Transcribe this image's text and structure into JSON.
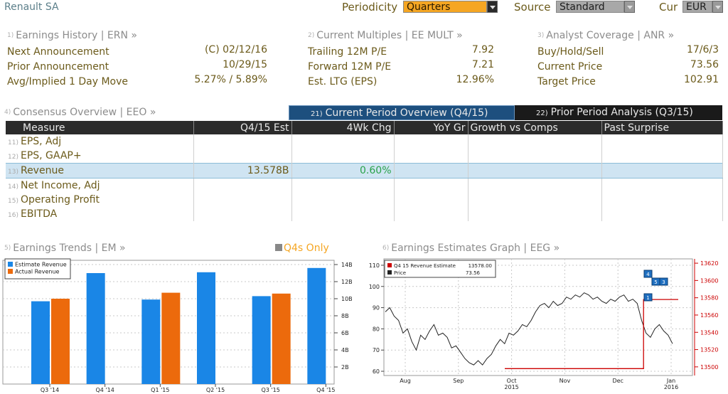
{
  "header": {
    "title": "Renault SA",
    "periodicity_label": "Periodicity",
    "periodicity_value": "Quarters",
    "source_label": "Source",
    "source_value": "Standard",
    "cur_label": "Cur",
    "cur_value": "EUR"
  },
  "sections": {
    "earnings_history": {
      "num": "1)",
      "title": "Earnings History | ERN »",
      "rows": [
        {
          "label": "Next Announcement",
          "value": "(C)  02/12/16"
        },
        {
          "label": "Prior Announcement",
          "value": "10/29/15"
        },
        {
          "label": "Avg/Implied 1 Day Move",
          "value": "5.27% / 5.89%"
        }
      ]
    },
    "current_multiples": {
      "num": "2)",
      "title": "Current Multiples | EE MULT »",
      "rows": [
        {
          "label": "Trailing 12M P/E",
          "value": "7.92"
        },
        {
          "label": "Forward 12M P/E",
          "value": "7.21"
        },
        {
          "label": "Est. LTG (EPS)",
          "value": "12.96%"
        }
      ]
    },
    "analyst_coverage": {
      "num": "3)",
      "title": "Analyst Coverage | ANR »",
      "rows": [
        {
          "label": "Buy/Hold/Sell",
          "value": "17/6/3"
        },
        {
          "label": "Current Price",
          "value": "73.56"
        },
        {
          "label": "Target Price",
          "value": "102.91"
        }
      ]
    }
  },
  "consensus": {
    "num": "4)",
    "title": "Consensus Overview | EEO »",
    "tab_current_num": "21)",
    "tab_current": "Current Period Overview (Q4/15)",
    "tab_prior_num": "22)",
    "tab_prior": "Prior Period Analysis (Q3/15)",
    "columns": [
      "Measure",
      "Q4/15 Est",
      "4Wk Chg",
      "YoY Gr",
      "Growth vs Comps",
      "Past Surprise"
    ],
    "rows": [
      {
        "num": "11)",
        "measure": "EPS, Adj",
        "est": "",
        "chg": ""
      },
      {
        "num": "12)",
        "measure": "EPS, GAAP+",
        "est": "",
        "chg": ""
      },
      {
        "num": "13)",
        "measure": "Revenue",
        "est": "13.578B",
        "chg": "0.60%"
      },
      {
        "num": "14)",
        "measure": "Net Income, Adj",
        "est": "",
        "chg": ""
      },
      {
        "num": "15)",
        "measure": "Operating Profit",
        "est": "",
        "chg": ""
      },
      {
        "num": "16)",
        "measure": "EBITDA",
        "est": "",
        "chg": ""
      }
    ]
  },
  "trends": {
    "num": "5)",
    "title": "Earnings Trends | EM »",
    "q4s_label": "Q4s Only"
  },
  "estgraph": {
    "num": "6)",
    "title": "Earnings Estimates Graph | EEG »"
  },
  "colors": {
    "estimate": "#1a86e6",
    "actual": "#ec6a0c",
    "price": "#222222",
    "revenue_est": "#cc0000",
    "tab_active": "#1d4f7e"
  },
  "chart_data": [
    {
      "type": "bar",
      "title": "",
      "categories": [
        "Q3 '14",
        "Q4 '14",
        "Q1 '15",
        "Q2 '15",
        "Q3 '15",
        "Q4 '15"
      ],
      "series": [
        {
          "name": "Estimate Revenue",
          "values": [
            9.7,
            13.0,
            9.9,
            13.1,
            10.3,
            13.6
          ]
        },
        {
          "name": "Actual Revenue",
          "values": [
            10.0,
            null,
            10.7,
            null,
            10.6,
            null
          ]
        }
      ],
      "y_ticks": [
        "2B",
        "4B",
        "6B",
        "8B",
        "10B",
        "12B",
        "14B"
      ],
      "ylim": [
        0,
        14.5
      ],
      "y_axis_side": "right",
      "legend": "top-left",
      "grid": true
    },
    {
      "type": "line",
      "title": "",
      "x_ticks": [
        "Aug",
        "Sep",
        "Oct\n2015",
        "Nov",
        "Dec",
        "Jan\n2016"
      ],
      "series": [
        {
          "name": "Price",
          "axis": "left",
          "last_value": "73.56",
          "values": [
            88,
            90,
            86,
            84,
            78,
            80,
            74,
            70,
            77,
            75,
            79,
            82,
            77,
            78,
            76,
            71,
            72,
            69,
            66,
            64,
            63,
            65,
            63,
            66,
            68,
            72,
            75,
            73,
            78,
            77,
            79,
            82,
            81,
            84,
            88,
            91,
            92,
            90,
            93,
            91,
            92,
            95,
            94,
            96,
            95,
            97,
            96,
            94,
            95,
            93,
            92,
            94,
            93,
            95,
            96,
            93,
            94,
            92,
            84,
            78,
            76,
            80,
            82,
            79,
            77,
            73
          ]
        },
        {
          "name": "Q4 15 Revenue Estimate",
          "axis": "right",
          "last_value": "13578.00",
          "values": [
            13498,
            13498,
            13498,
            13498,
            13498,
            13498,
            13498,
            13498,
            13498,
            13498,
            13498,
            13498,
            13578,
            13578,
            13578,
            13578
          ]
        }
      ],
      "left_ticks": [
        "60",
        "70",
        "80",
        "90",
        "100",
        "110"
      ],
      "right_ticks": [
        "13500",
        "13520",
        "13540",
        "13560",
        "13580",
        "13600",
        "13620"
      ],
      "left_ylim": [
        58,
        113
      ],
      "right_ylim": [
        13490,
        13625
      ],
      "legend": "top-left",
      "grid": true,
      "annotation_labels": [
        "4",
        "5",
        "3",
        "1"
      ]
    }
  ]
}
